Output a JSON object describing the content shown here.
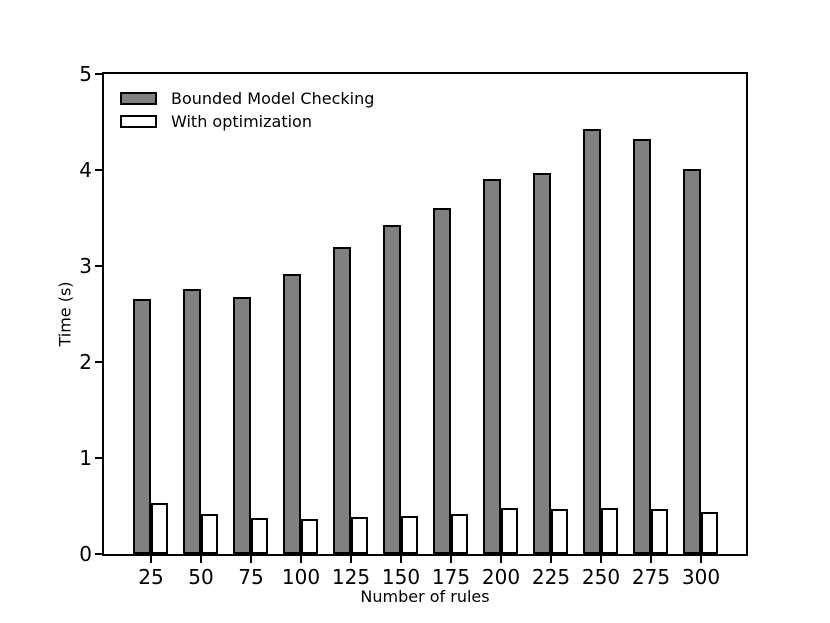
{
  "figure": {
    "background": "#ffffff",
    "text_color": "#000000"
  },
  "chart_data": {
    "type": "bar",
    "title": "",
    "xlabel": "Number of rules",
    "ylabel": "Time (s)",
    "categories": [
      "25",
      "50",
      "75",
      "100",
      "125",
      "150",
      "175",
      "200",
      "225",
      "250",
      "275",
      "300"
    ],
    "series": [
      {
        "name": "Bounded Model Checking",
        "color": "#808080",
        "edge_color": "#000000",
        "values": [
          2.66,
          2.76,
          2.68,
          2.92,
          3.2,
          3.43,
          3.6,
          3.91,
          3.97,
          4.43,
          4.32,
          4.01
        ]
      },
      {
        "name": "With optimization",
        "color": "#ffffff",
        "edge_color": "#000000",
        "values": [
          0.53,
          0.42,
          0.37,
          0.36,
          0.39,
          0.4,
          0.42,
          0.48,
          0.47,
          0.48,
          0.47,
          0.44
        ]
      }
    ],
    "ylim": [
      0,
      5
    ],
    "yticks": [
      0,
      1,
      2,
      3,
      4,
      5
    ],
    "grid": false,
    "legend_position": "upper-left",
    "bar_width_fraction": 0.35
  }
}
